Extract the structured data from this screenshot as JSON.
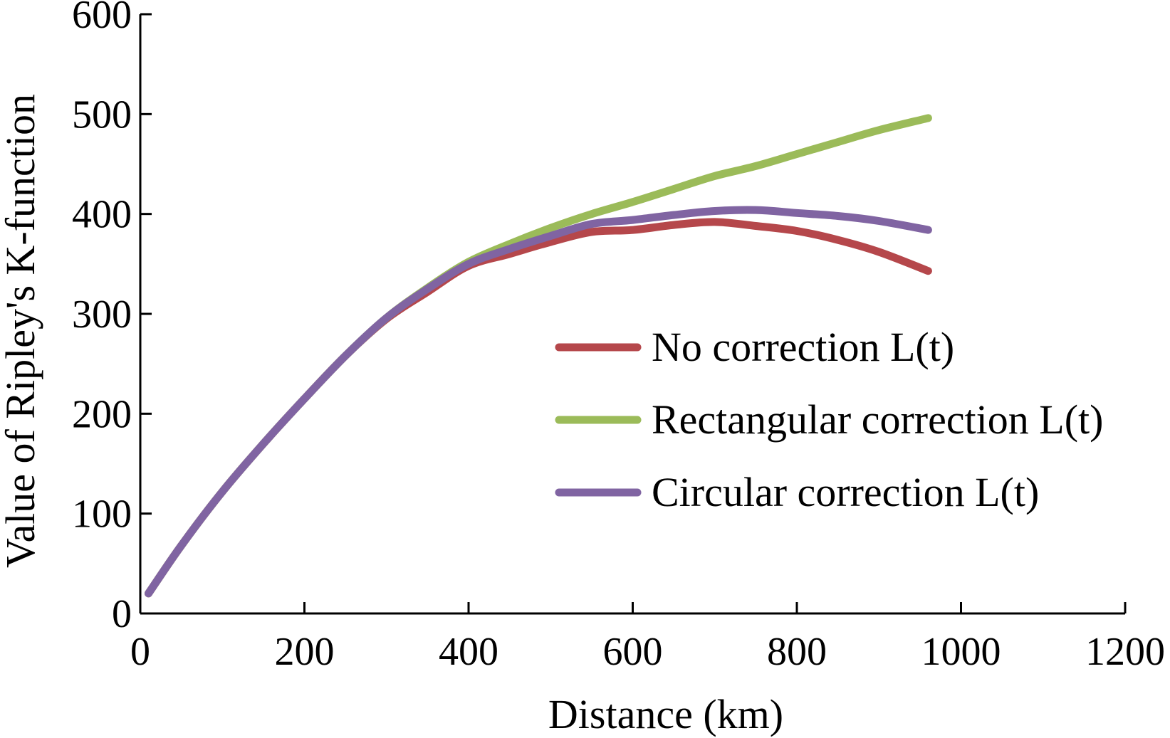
{
  "chart_data": {
    "type": "line",
    "title": "",
    "xlabel": "Distance (km)",
    "ylabel": "Value of Ripley's K-function",
    "xlim": [
      0,
      1200
    ],
    "ylim": [
      0,
      600
    ],
    "x_ticks": [
      0,
      200,
      400,
      600,
      800,
      1000,
      1200
    ],
    "y_ticks": [
      0,
      100,
      200,
      300,
      400,
      500,
      600
    ],
    "grid": false,
    "legend_position": "right",
    "series": [
      {
        "name": "No correction L(t)",
        "color": "#b5474b",
        "x": [
          10,
          50,
          100,
          150,
          200,
          250,
          300,
          350,
          400,
          450,
          500,
          550,
          600,
          650,
          700,
          750,
          800,
          850,
          900,
          960
        ],
        "y": [
          20,
          68,
          122,
          170,
          215,
          258,
          295,
          322,
          348,
          360,
          372,
          382,
          384,
          389,
          392,
          388,
          383,
          374,
          362,
          343
        ]
      },
      {
        "name": "Rectangular correction L(t)",
        "color": "#9bbb59",
        "x": [
          10,
          50,
          100,
          150,
          200,
          250,
          300,
          350,
          400,
          450,
          500,
          550,
          600,
          650,
          700,
          750,
          800,
          850,
          900,
          960
        ],
        "y": [
          20,
          68,
          122,
          170,
          215,
          258,
          296,
          326,
          352,
          370,
          386,
          400,
          412,
          425,
          438,
          448,
          460,
          472,
          484,
          496
        ]
      },
      {
        "name": "Circular correction L(t)",
        "color": "#8064a2",
        "x": [
          10,
          50,
          100,
          150,
          200,
          250,
          300,
          350,
          400,
          450,
          500,
          550,
          600,
          650,
          700,
          750,
          800,
          850,
          900,
          960
        ],
        "y": [
          20,
          68,
          122,
          170,
          215,
          258,
          296,
          325,
          350,
          365,
          378,
          390,
          394,
          399,
          403,
          404,
          401,
          398,
          393,
          384
        ]
      }
    ]
  }
}
